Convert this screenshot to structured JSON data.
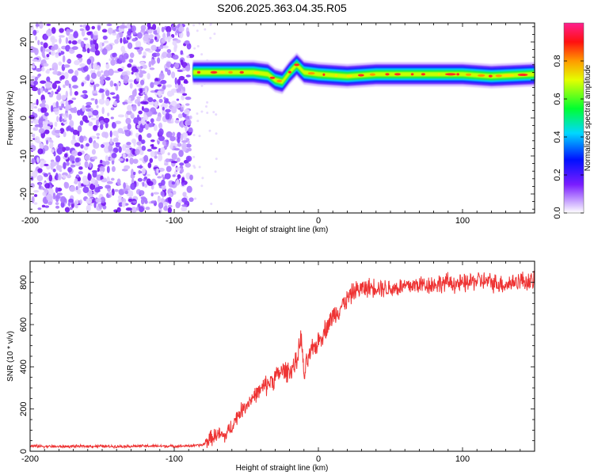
{
  "title": "S206.2025.363.04.35.R05",
  "chart_data": [
    {
      "type": "heatmap",
      "xlabel": "Height of straight line (km)",
      "ylabel": "Frequency (Hz)",
      "xlim": [
        -200,
        150
      ],
      "ylim": [
        -25,
        25
      ],
      "xticks": [
        -200,
        -100,
        0,
        100
      ],
      "yticks": [
        -20,
        -10,
        0,
        10,
        20
      ],
      "noise_region_x": [
        -200,
        -87
      ],
      "signal_band": {
        "x": [
          -87,
          -75,
          -60,
          -45,
          -35,
          -30,
          -25,
          -20,
          -15,
          -10,
          0,
          20,
          40,
          60,
          80,
          100,
          120,
          150
        ],
        "freq": [
          12,
          12,
          12,
          12,
          11.5,
          10,
          9.5,
          12,
          14,
          12,
          11.5,
          11,
          11.5,
          11.5,
          11.5,
          11.5,
          11,
          11.5
        ]
      },
      "colorbar": {
        "label": "Normalized spectral amplitude",
        "range": [
          0.0,
          1.0
        ],
        "ticks": [
          0.0,
          0.2,
          0.4,
          0.6,
          0.8
        ]
      }
    },
    {
      "type": "line",
      "xlabel": "Height of straight line (km)",
      "ylabel": "SNR (10 * v/v)",
      "xlim": [
        -200,
        150
      ],
      "ylim": [
        0,
        900
      ],
      "xticks": [
        -200,
        -100,
        0,
        100
      ],
      "yticks": [
        0,
        200,
        400,
        600,
        800
      ],
      "color": "#ee3333",
      "series": [
        {
          "name": "SNR",
          "x": [
            -200,
            -180,
            -160,
            -140,
            -120,
            -100,
            -90,
            -80,
            -75,
            -70,
            -65,
            -60,
            -55,
            -50,
            -45,
            -40,
            -35,
            -30,
            -25,
            -20,
            -15,
            -12,
            -10,
            -8,
            -5,
            0,
            5,
            10,
            15,
            20,
            25,
            30,
            40,
            50,
            60,
            70,
            80,
            90,
            100,
            110,
            120,
            130,
            140,
            150
          ],
          "y": [
            25,
            22,
            24,
            23,
            25,
            24,
            25,
            30,
            60,
            80,
            70,
            120,
            180,
            220,
            260,
            290,
            320,
            350,
            380,
            380,
            420,
            550,
            350,
            420,
            470,
            520,
            580,
            640,
            680,
            720,
            760,
            770,
            780,
            770,
            780,
            790,
            790,
            800,
            790,
            810,
            800,
            790,
            810,
            800
          ]
        }
      ]
    }
  ]
}
